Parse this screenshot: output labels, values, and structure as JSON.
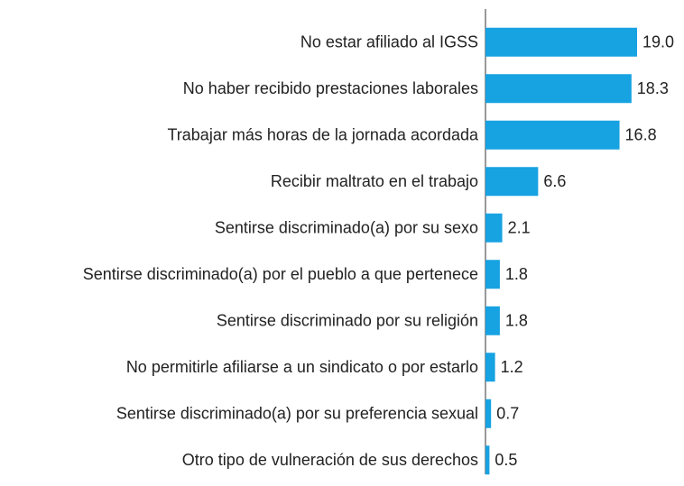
{
  "chart_data": {
    "type": "bar",
    "orientation": "horizontal",
    "categories": [
      "No estar afiliado al IGSS",
      "No haber recibido prestaciones laborales",
      "Trabajar más horas de la jornada acordada",
      "Recibir maltrato en el trabajo",
      "Sentirse discriminado(a) por su sexo",
      "Sentirse discriminado(a) por el pueblo a que pertenece",
      "Sentirse discriminado por su religión",
      "No permitirle afiliarse a un sindicato o por estarlo",
      "Sentirse discriminado(a) por su preferencia sexual",
      "Otro tipo de vulneración de sus derechos"
    ],
    "values": [
      19.0,
      18.3,
      16.8,
      6.6,
      2.1,
      1.8,
      1.8,
      1.2,
      0.7,
      0.5
    ],
    "value_labels": [
      "19.0",
      "18.3",
      "16.8",
      "6.6",
      "2.1",
      "1.8",
      "1.8",
      "1.2",
      "0.7",
      "0.5"
    ],
    "color": "#17a2e2",
    "xlim": [
      0,
      19
    ]
  }
}
